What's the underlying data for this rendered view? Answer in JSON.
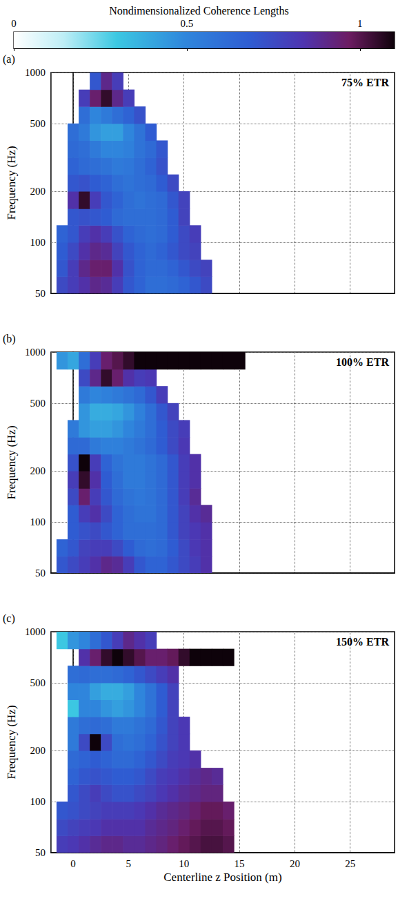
{
  "colorbar": {
    "label": "Nondimensionalized Coherence Lengths",
    "range": [
      0,
      1.1
    ],
    "ticks": [
      0,
      0.5,
      1
    ]
  },
  "chart_data": [
    {
      "type": "heatmap",
      "panel_label": "(a)",
      "title": "75% ETR",
      "ylabel": "Frequency (Hz)",
      "xlim": [
        -2,
        29
      ],
      "xticks": [
        0,
        5,
        10,
        15,
        20,
        25
      ],
      "ylim": [
        50,
        1000
      ],
      "yticks": [
        50,
        100,
        200,
        500,
        1000
      ],
      "log": "y",
      "grid": true,
      "tick_labels": "y",
      "x_edges": [
        -1.5,
        -0.5,
        0.5,
        1.5,
        2.5,
        3.5,
        4.5,
        5.5,
        6.5,
        7.5,
        8.5,
        9.5,
        10.5,
        11.5,
        12.5,
        13.5,
        14.5,
        15.5,
        16.5
      ],
      "y_edges": [
        50,
        63,
        79,
        100,
        126,
        158,
        200,
        251,
        316,
        398,
        501,
        631,
        794,
        1000
      ],
      "values": [
        [
          0.75,
          0.8,
          0.85,
          0.9,
          0.88,
          0.8,
          0.7,
          0.65,
          0.6,
          0.6,
          0.62,
          0.65,
          0.7,
          0.75,
          null,
          null,
          null,
          null
        ],
        [
          0.7,
          0.8,
          0.9,
          0.95,
          0.95,
          0.85,
          0.72,
          0.65,
          0.62,
          0.62,
          0.65,
          0.7,
          0.75,
          0.78,
          null,
          null,
          null,
          null
        ],
        [
          0.68,
          0.75,
          0.85,
          0.9,
          0.88,
          0.78,
          0.7,
          0.65,
          0.62,
          0.65,
          0.7,
          0.75,
          0.78,
          null,
          null,
          null,
          null,
          null
        ],
        [
          0.65,
          0.7,
          0.8,
          0.85,
          0.8,
          0.72,
          0.65,
          0.62,
          0.6,
          0.62,
          0.68,
          0.75,
          0.8,
          null,
          null,
          null,
          null,
          null
        ],
        [
          null,
          0.7,
          0.72,
          0.7,
          0.68,
          0.62,
          0.6,
          0.6,
          0.6,
          0.62,
          0.68,
          0.78,
          null,
          null,
          null,
          null,
          null,
          null
        ],
        [
          null,
          0.85,
          1.05,
          0.8,
          0.7,
          0.65,
          0.6,
          0.58,
          0.6,
          0.62,
          0.7,
          0.78,
          null,
          null,
          null,
          null,
          null,
          null
        ],
        [
          null,
          0.7,
          0.72,
          0.68,
          0.65,
          0.6,
          0.58,
          0.6,
          0.62,
          0.68,
          0.75,
          null,
          null,
          null,
          null,
          null,
          null,
          null
        ],
        [
          null,
          0.65,
          0.62,
          0.6,
          0.58,
          0.55,
          0.56,
          0.6,
          0.65,
          0.72,
          null,
          null,
          null,
          null,
          null,
          null,
          null,
          null
        ],
        [
          null,
          0.62,
          0.6,
          0.55,
          0.5,
          0.5,
          0.52,
          0.58,
          0.62,
          0.7,
          null,
          null,
          null,
          null,
          null,
          null,
          null,
          null
        ],
        [
          null,
          0.6,
          0.55,
          0.45,
          0.42,
          0.42,
          0.5,
          0.58,
          0.68,
          null,
          null,
          null,
          null,
          null,
          null,
          null,
          null,
          null
        ],
        [
          null,
          null,
          0.6,
          0.5,
          0.55,
          0.6,
          0.65,
          0.72,
          null,
          null,
          null,
          null,
          null,
          null,
          null,
          null,
          null,
          null
        ],
        [
          null,
          null,
          0.8,
          0.95,
          1.05,
          0.9,
          0.8,
          null,
          null,
          null,
          null,
          null,
          null,
          null,
          null,
          null,
          null,
          null
        ],
        [
          null,
          null,
          null,
          0.7,
          0.9,
          0.8,
          null,
          null,
          null,
          null,
          null,
          null,
          null,
          null,
          null,
          null,
          null,
          null
        ]
      ]
    },
    {
      "type": "heatmap",
      "panel_label": "(b)",
      "title": "100% ETR",
      "ylabel": "Frequency (Hz)",
      "xlim": [
        -2,
        29
      ],
      "xticks": [
        0,
        5,
        10,
        15,
        20,
        25
      ],
      "ylim": [
        50,
        1000
      ],
      "yticks": [
        50,
        100,
        200,
        500,
        1000
      ],
      "log": "y",
      "grid": true,
      "tick_labels": "y",
      "x_edges": [
        -1.5,
        -0.5,
        0.5,
        1.5,
        2.5,
        3.5,
        4.5,
        5.5,
        6.5,
        7.5,
        8.5,
        9.5,
        10.5,
        11.5,
        12.5,
        13.5,
        14.5,
        15.5,
        16.5
      ],
      "y_edges": [
        50,
        63,
        79,
        100,
        126,
        158,
        200,
        251,
        316,
        398,
        501,
        631,
        794,
        1000
      ],
      "values": [
        [
          0.7,
          0.75,
          0.8,
          0.85,
          0.9,
          0.88,
          0.8,
          0.7,
          0.65,
          0.65,
          0.7,
          0.75,
          0.8,
          0.85,
          null,
          null,
          null,
          null
        ],
        [
          0.65,
          0.7,
          0.78,
          0.8,
          0.8,
          0.75,
          0.68,
          0.62,
          0.6,
          0.62,
          0.68,
          0.75,
          0.82,
          0.85,
          null,
          null,
          null,
          null
        ],
        [
          null,
          0.68,
          0.72,
          0.75,
          0.7,
          0.65,
          0.6,
          0.6,
          0.6,
          0.62,
          0.7,
          0.78,
          0.82,
          0.85,
          null,
          null,
          null,
          null
        ],
        [
          null,
          0.68,
          0.8,
          0.85,
          0.75,
          0.65,
          0.6,
          0.58,
          0.58,
          0.62,
          0.7,
          0.78,
          0.85,
          0.88,
          null,
          null,
          null,
          null
        ],
        [
          null,
          0.75,
          0.95,
          0.8,
          0.7,
          0.62,
          0.58,
          0.56,
          0.58,
          0.62,
          0.7,
          0.8,
          0.88,
          null,
          null,
          null,
          null,
          null
        ],
        [
          null,
          0.8,
          1.05,
          0.85,
          0.68,
          0.6,
          0.55,
          0.55,
          0.58,
          0.62,
          0.7,
          0.8,
          0.85,
          null,
          null,
          null,
          null,
          null
        ],
        [
          null,
          0.72,
          1.1,
          0.8,
          0.65,
          0.58,
          0.55,
          0.55,
          0.58,
          0.62,
          0.7,
          0.8,
          0.85,
          null,
          null,
          null,
          null,
          null
        ],
        [
          null,
          0.62,
          0.62,
          0.55,
          0.52,
          0.52,
          0.55,
          0.58,
          0.62,
          0.68,
          0.75,
          0.82,
          null,
          null,
          null,
          null,
          null,
          null
        ],
        [
          null,
          0.55,
          0.45,
          0.42,
          0.42,
          0.45,
          0.5,
          0.55,
          0.6,
          0.68,
          0.75,
          0.8,
          null,
          null,
          null,
          null,
          null,
          null
        ],
        [
          null,
          null,
          0.45,
          0.38,
          0.38,
          0.4,
          0.45,
          0.52,
          0.6,
          0.7,
          0.78,
          null,
          null,
          null,
          null,
          null,
          null,
          null
        ],
        [
          null,
          null,
          0.55,
          0.5,
          0.52,
          0.55,
          0.58,
          0.62,
          0.7,
          0.8,
          null,
          null,
          null,
          null,
          null,
          null,
          null,
          null
        ],
        [
          null,
          null,
          0.75,
          0.9,
          1.05,
          0.95,
          0.85,
          0.8,
          0.82,
          null,
          null,
          null,
          null,
          null,
          null,
          null,
          null,
          null
        ],
        [
          0.45,
          0.4,
          0.6,
          0.8,
          0.95,
          1.0,
          1.05,
          1.1,
          1.1,
          1.1,
          1.1,
          1.1,
          1.1,
          1.1,
          1.1,
          1.1,
          1.1,
          null
        ]
      ]
    },
    {
      "type": "heatmap",
      "panel_label": "(c)",
      "title": "150% ETR",
      "ylabel": "Frequency (Hz)",
      "xlabel": "Centerline z Position (m)",
      "xlim": [
        -2,
        29
      ],
      "xticks": [
        0,
        5,
        10,
        15,
        20,
        25
      ],
      "ylim": [
        50,
        1000
      ],
      "yticks": [
        50,
        100,
        200,
        500,
        1000
      ],
      "log": "y",
      "grid": true,
      "x_edges": [
        -1.5,
        -0.5,
        0.5,
        1.5,
        2.5,
        3.5,
        4.5,
        5.5,
        6.5,
        7.5,
        8.5,
        9.5,
        10.5,
        11.5,
        12.5,
        13.5,
        14.5,
        15.5,
        16.5
      ],
      "y_edges": [
        50,
        63,
        79,
        100,
        126,
        158,
        200,
        251,
        316,
        398,
        501,
        631,
        794,
        1000
      ],
      "values": [
        [
          0.8,
          0.82,
          0.85,
          0.88,
          0.9,
          0.9,
          0.88,
          0.88,
          0.9,
          0.92,
          0.95,
          0.98,
          1.0,
          1.02,
          1.02,
          1.0,
          null,
          null
        ],
        [
          0.75,
          0.78,
          0.8,
          0.82,
          0.85,
          0.85,
          0.85,
          0.85,
          0.88,
          0.9,
          0.92,
          0.95,
          0.98,
          1.0,
          1.0,
          0.98,
          null,
          null
        ],
        [
          0.7,
          0.72,
          0.75,
          0.78,
          0.8,
          0.8,
          0.8,
          0.82,
          0.85,
          0.88,
          0.9,
          0.92,
          0.95,
          0.98,
          0.98,
          0.95,
          null,
          null
        ],
        [
          null,
          0.7,
          0.75,
          0.8,
          0.75,
          0.72,
          0.72,
          0.75,
          0.78,
          0.82,
          0.85,
          0.88,
          0.9,
          0.92,
          0.92,
          null,
          null,
          null
        ],
        [
          null,
          0.65,
          0.7,
          0.72,
          0.7,
          0.68,
          0.68,
          0.7,
          0.75,
          0.8,
          0.82,
          0.85,
          0.88,
          0.9,
          0.88,
          null,
          null,
          null
        ],
        [
          null,
          0.62,
          0.65,
          0.68,
          0.65,
          0.62,
          0.62,
          0.65,
          0.7,
          0.75,
          0.8,
          0.82,
          0.85,
          null,
          null,
          null,
          null,
          null
        ],
        [
          null,
          0.55,
          0.75,
          1.1,
          0.75,
          0.6,
          0.58,
          0.6,
          0.65,
          0.72,
          0.78,
          0.82,
          null,
          null,
          null,
          null,
          null,
          null
        ],
        [
          null,
          0.55,
          0.6,
          0.62,
          0.6,
          0.55,
          0.55,
          0.58,
          0.62,
          0.7,
          0.78,
          0.82,
          null,
          null,
          null,
          null,
          null,
          null
        ],
        [
          null,
          0.3,
          0.5,
          0.5,
          0.45,
          0.42,
          0.45,
          0.5,
          0.58,
          0.68,
          0.78,
          null,
          null,
          null,
          null,
          null,
          null,
          null
        ],
        [
          null,
          0.5,
          0.5,
          0.42,
          0.38,
          0.38,
          0.42,
          0.5,
          0.58,
          0.68,
          0.78,
          null,
          null,
          null,
          null,
          null,
          null,
          null
        ],
        [
          null,
          0.6,
          0.62,
          0.6,
          0.6,
          0.62,
          0.65,
          0.7,
          0.75,
          0.8,
          0.85,
          null,
          null,
          null,
          null,
          null,
          null,
          null
        ],
        [
          null,
          null,
          0.85,
          0.95,
          1.05,
          1.1,
          1.05,
          1.0,
          0.95,
          0.95,
          0.98,
          1.05,
          1.1,
          1.1,
          1.1,
          1.1,
          null,
          null
        ],
        [
          0.3,
          0.45,
          0.5,
          0.6,
          0.7,
          0.8,
          0.9,
          0.85,
          0.8,
          null,
          null,
          null,
          null,
          null,
          null,
          null,
          null,
          null
        ]
      ]
    }
  ]
}
